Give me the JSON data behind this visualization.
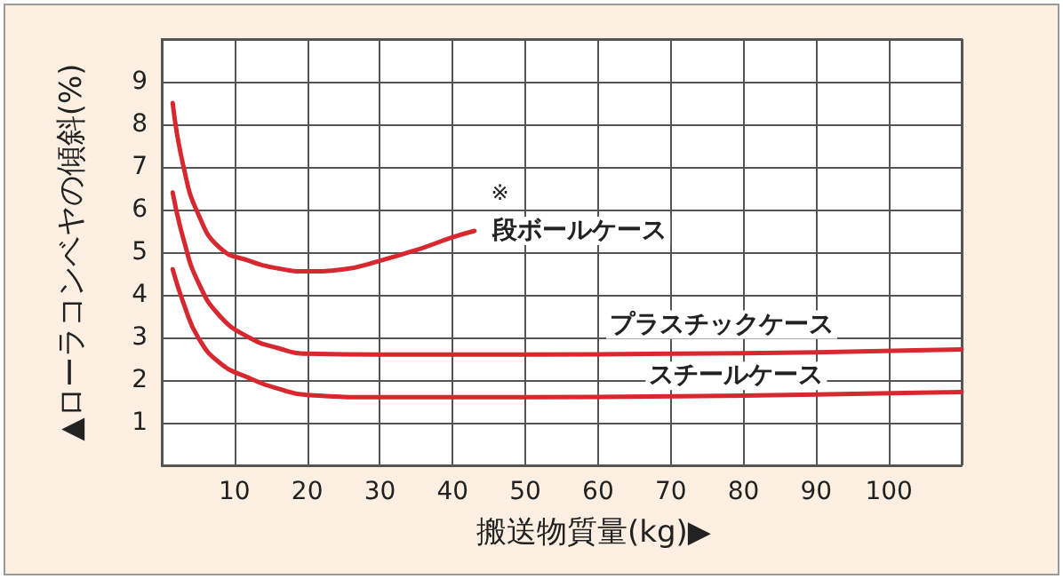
{
  "chart_data": {
    "type": "line",
    "xlabel": "搬送物質量(kg)▶",
    "ylabel": "▲ローラコンベヤの傾斜(%)",
    "annotations": [
      "※"
    ],
    "series": [
      {
        "name": "段ボールケース",
        "color": "#d7282f",
        "x": [
          1.5,
          3,
          5,
          8,
          12,
          16,
          20,
          25,
          30,
          35,
          40,
          43
        ],
        "values": [
          8.5,
          7,
          5.9,
          5.1,
          4.8,
          4.62,
          4.55,
          4.6,
          4.8,
          5.05,
          5.35,
          5.5
        ]
      },
      {
        "name": "プラスチックケース",
        "color": "#d7282f",
        "x": [
          1.5,
          3,
          5,
          8,
          12,
          16,
          20,
          30,
          50,
          70,
          90,
          110
        ],
        "values": [
          6.4,
          5.3,
          4.3,
          3.5,
          3.0,
          2.75,
          2.62,
          2.6,
          2.6,
          2.62,
          2.65,
          2.72
        ]
      },
      {
        "name": "スチールケース",
        "color": "#d7282f",
        "x": [
          1.5,
          3,
          5,
          8,
          12,
          16,
          20,
          30,
          50,
          70,
          90,
          110
        ],
        "values": [
          4.6,
          3.8,
          3.0,
          2.4,
          2.05,
          1.8,
          1.65,
          1.6,
          1.6,
          1.62,
          1.66,
          1.72
        ]
      }
    ],
    "xlim": [
      0,
      110
    ],
    "xticks": [
      10,
      20,
      30,
      40,
      50,
      60,
      70,
      80,
      90,
      100
    ],
    "ylim": [
      0,
      10
    ],
    "yticks": [
      1,
      2,
      3,
      4,
      5,
      6,
      7,
      8,
      9
    ],
    "grid": true,
    "legend": false,
    "marker": "none",
    "line_style": "solid"
  }
}
